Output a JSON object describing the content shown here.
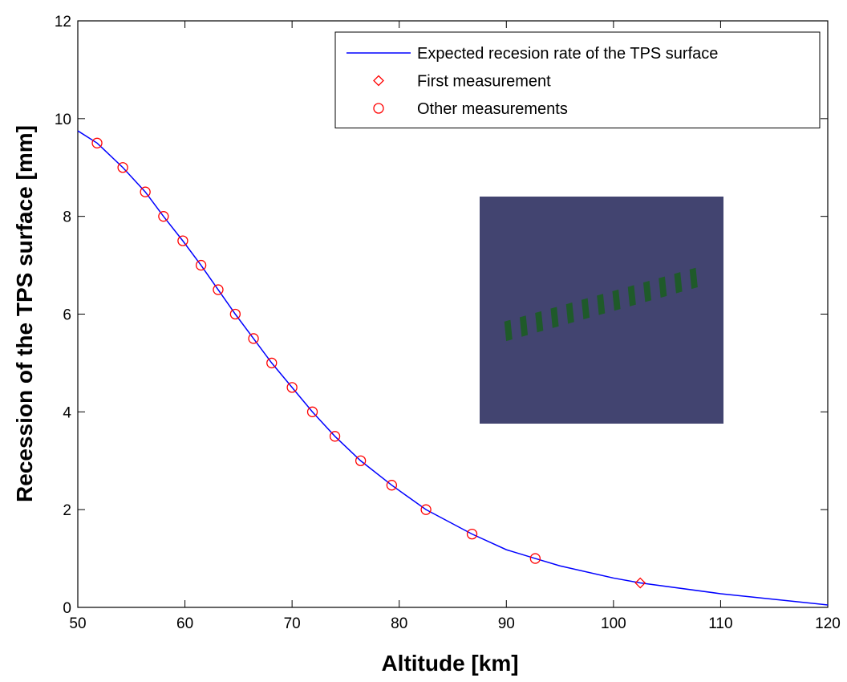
{
  "chart_data": {
    "type": "line",
    "xlabel": "Altitude [km]",
    "ylabel": "Recession of the TPS surface [mm]",
    "xlim": [
      50,
      120
    ],
    "ylim": [
      0,
      12
    ],
    "xticks": [
      50,
      60,
      70,
      80,
      90,
      100,
      110,
      120
    ],
    "yticks": [
      0,
      2,
      4,
      6,
      8,
      10,
      12
    ],
    "legend": "upper right",
    "series": [
      {
        "name": "Expected recesion rate of the TPS surface",
        "color": "#0000ff",
        "style": "line",
        "x": [
          50,
          51.8,
          54.2,
          56.3,
          58.0,
          59.8,
          61.5,
          63.1,
          64.7,
          66.4,
          68.1,
          70.0,
          71.9,
          74.0,
          76.4,
          79.3,
          82.5,
          86.8,
          90,
          92.7,
          95,
          100,
          102.5,
          110,
          120
        ],
        "values": [
          9.75,
          9.5,
          9.0,
          8.5,
          8.0,
          7.5,
          7.0,
          6.5,
          6.0,
          5.5,
          5.0,
          4.5,
          4.0,
          3.5,
          3.0,
          2.5,
          2.0,
          1.5,
          1.18,
          1.0,
          0.85,
          0.6,
          0.5,
          0.28,
          0.05
        ]
      },
      {
        "name": "First measurement",
        "color": "#ff0000",
        "marker": "diamond",
        "x": [
          102.5
        ],
        "values": [
          0.5
        ]
      },
      {
        "name": "Other measurements",
        "color": "#ff0000",
        "marker": "circle",
        "x": [
          51.8,
          54.2,
          56.3,
          58.0,
          59.8,
          61.5,
          63.1,
          64.7,
          66.4,
          68.1,
          70.0,
          71.9,
          74.0,
          76.4,
          79.3,
          82.5,
          86.8,
          92.7
        ],
        "values": [
          9.5,
          9.0,
          8.5,
          8.0,
          7.5,
          7.0,
          6.5,
          6.0,
          5.5,
          5.0,
          4.5,
          4.0,
          3.5,
          3.0,
          2.5,
          2.0,
          1.5,
          1.0
        ]
      }
    ]
  }
}
